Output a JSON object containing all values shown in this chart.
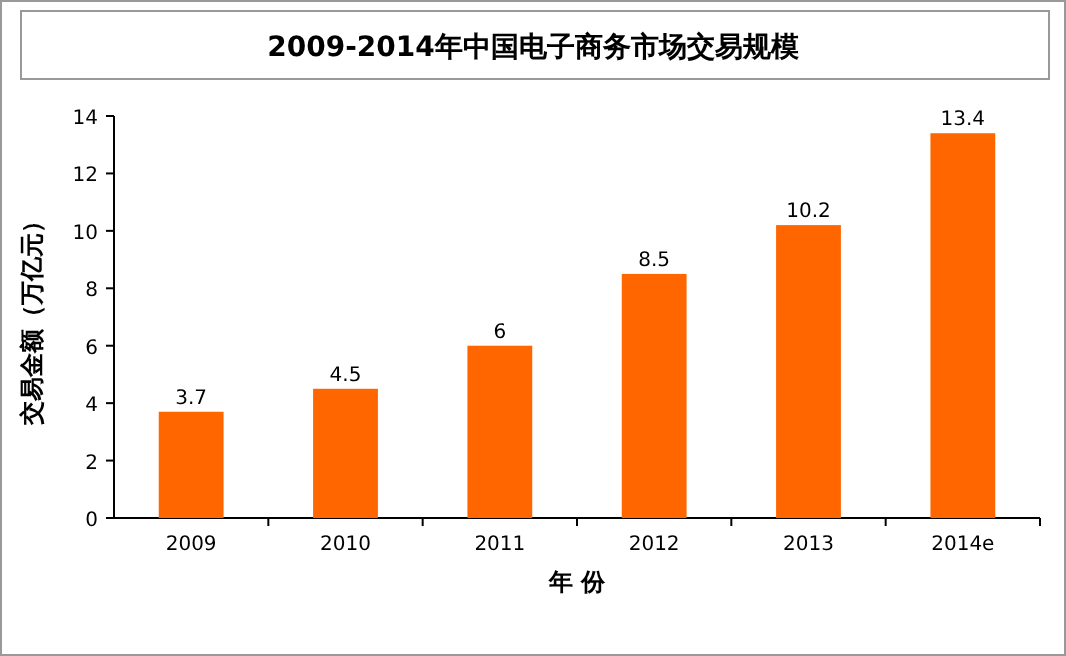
{
  "chart_data": {
    "type": "bar",
    "title": "2009-2014年中国电子商务市场交易规模",
    "xlabel": "年 份",
    "ylabel": "交易金额（万亿元）",
    "categories": [
      "2009",
      "2010",
      "2011",
      "2012",
      "2013",
      "2014e"
    ],
    "values": [
      3.7,
      4.5,
      6,
      8.5,
      10.2,
      13.4
    ],
    "color": "#ff6600",
    "ylim": [
      0,
      14
    ],
    "yticks": [
      0,
      2,
      4,
      6,
      8,
      10,
      12,
      14
    ],
    "data_labels": true
  }
}
